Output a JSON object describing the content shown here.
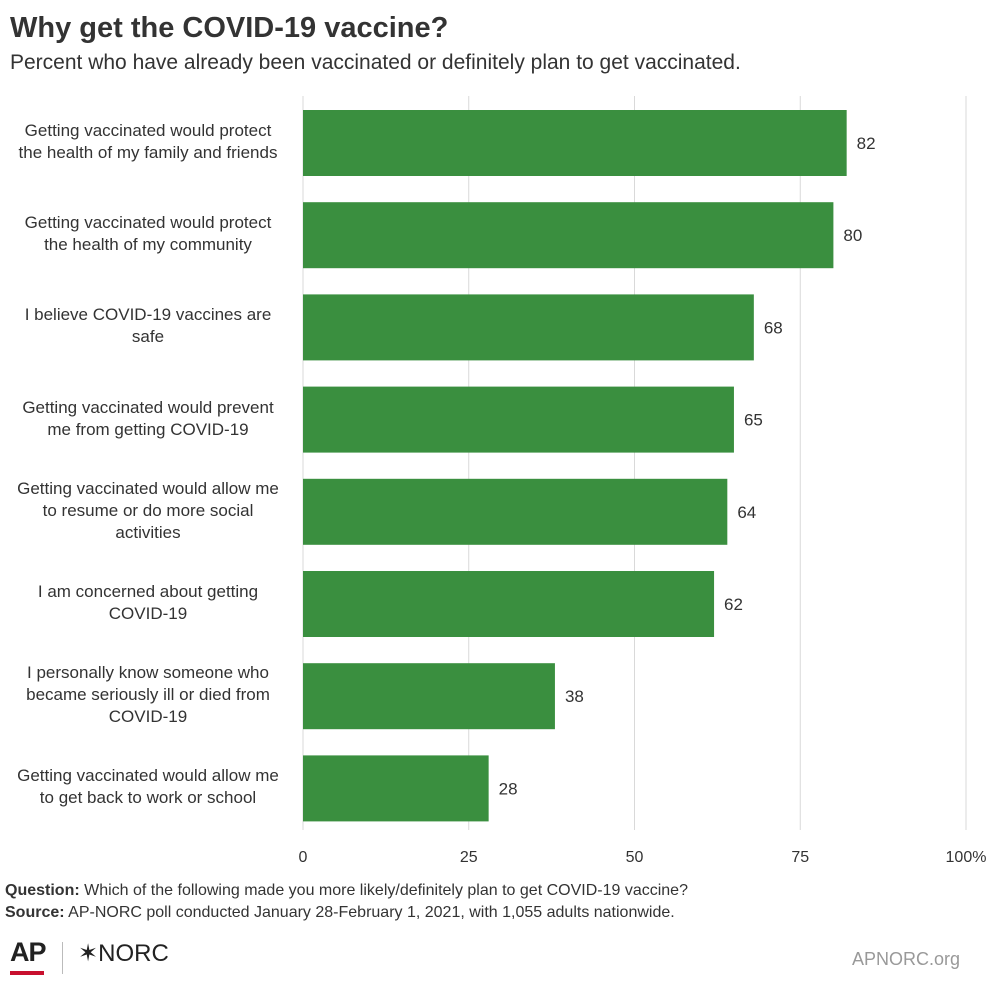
{
  "title": "Why get the COVID-19 vaccine?",
  "subtitle": "Percent who have already been vaccinated or definitely plan to get vaccinated.",
  "colors": {
    "bar": "#3a8f3f",
    "grid": "#d9d9d9",
    "text": "#333333"
  },
  "chart_data": {
    "type": "bar",
    "orientation": "horizontal",
    "categories": [
      "Getting vaccinated would protect the health of my family and friends",
      "Getting vaccinated would protect the health of my community",
      "I believe COVID-19 vaccines are safe",
      "Getting vaccinated would prevent me from getting COVID-19",
      "Getting vaccinated would allow me to resume or do more social activities",
      "I am concerned about getting COVID-19",
      "I personally know someone who became seriously ill or died from COVID-19",
      "Getting vaccinated would allow me to get back to work or school"
    ],
    "category_lines": [
      [
        "Getting vaccinated would protect",
        "the health of my family and friends"
      ],
      [
        "Getting vaccinated would protect",
        "the health of my community"
      ],
      [
        "I believe COVID-19 vaccines are",
        "safe"
      ],
      [
        "Getting vaccinated would prevent",
        "me from getting COVID-19"
      ],
      [
        "Getting vaccinated would allow me",
        "to resume or do more social",
        "activities"
      ],
      [
        "I am concerned about getting",
        "COVID-19"
      ],
      [
        "I personally know someone who",
        "became seriously ill or died from",
        "COVID-19"
      ],
      [
        "Getting vaccinated would allow me",
        "to get back to work or school"
      ]
    ],
    "values": [
      82,
      80,
      68,
      65,
      64,
      62,
      38,
      28
    ],
    "data_labels": [
      "82",
      "80",
      "68",
      "65",
      "64",
      "62",
      "38",
      "28"
    ],
    "xlim": [
      0,
      100
    ],
    "xticks": [
      0,
      25,
      50,
      75,
      100
    ],
    "xtick_labels": [
      "0",
      "25",
      "50",
      "75",
      "100%"
    ],
    "grid": true,
    "legend": "none"
  },
  "notes": {
    "question_label": "Question:",
    "question_text": " Which of the following made you more likely/definitely plan to get COVID-19 vaccine?",
    "source_label": "Source:",
    "source_text": " AP-NORC poll conducted January 28-February 1, 2021, with 1,055 adults nationwide."
  },
  "footer": {
    "logo_ap": "AP",
    "logo_norc": "✶NORC",
    "site": "APNORC.org"
  }
}
